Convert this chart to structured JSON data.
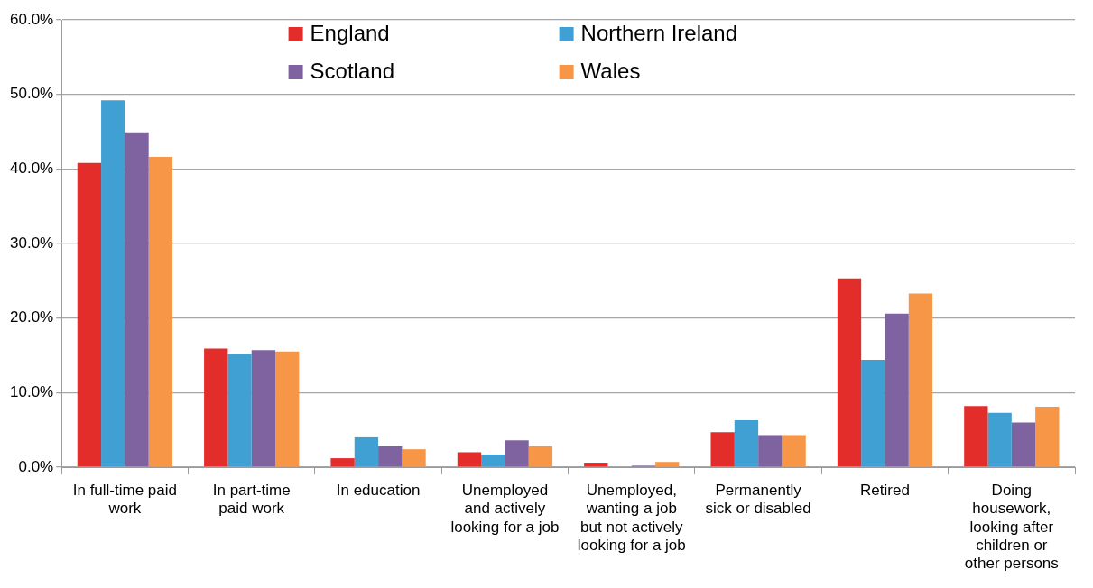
{
  "chart_data": {
    "type": "bar",
    "categories": [
      "In full-time paid work",
      "In part-time paid work",
      "In education",
      "Unemployed and actively looking for a job",
      "Unemployed, wanting a job but not actively looking for a job",
      "Permanently sick or disabled",
      "Retired",
      "Doing housework, looking after children or other persons"
    ],
    "series": [
      {
        "name": "England",
        "color": "#e32d2a",
        "values": [
          40.8,
          15.9,
          1.2,
          2.0,
          0.6,
          4.7,
          25.3,
          8.2
        ]
      },
      {
        "name": "Northern Ireland",
        "color": "#41a0d3",
        "values": [
          49.2,
          15.2,
          4.0,
          1.7,
          0.0,
          6.3,
          14.4,
          7.3
        ]
      },
      {
        "name": "Scotland",
        "color": "#7f63a1",
        "values": [
          44.9,
          15.7,
          2.8,
          3.6,
          0.2,
          4.3,
          20.6,
          6.0
        ]
      },
      {
        "name": "Wales",
        "color": "#f79646",
        "values": [
          41.6,
          15.5,
          2.4,
          2.8,
          0.7,
          4.3,
          23.3,
          8.1
        ]
      }
    ],
    "ylim": [
      0,
      60
    ],
    "yticks": [
      {
        "value": 0,
        "label": "0.0%"
      },
      {
        "value": 10,
        "label": "10.0%"
      },
      {
        "value": 20,
        "label": "20.0%"
      },
      {
        "value": 30,
        "label": "30.0%"
      },
      {
        "value": 40,
        "label": "40.0%"
      },
      {
        "value": 50,
        "label": "50.0%"
      },
      {
        "value": 60,
        "label": "60.0%"
      }
    ],
    "grid": "y",
    "legend": "top"
  }
}
